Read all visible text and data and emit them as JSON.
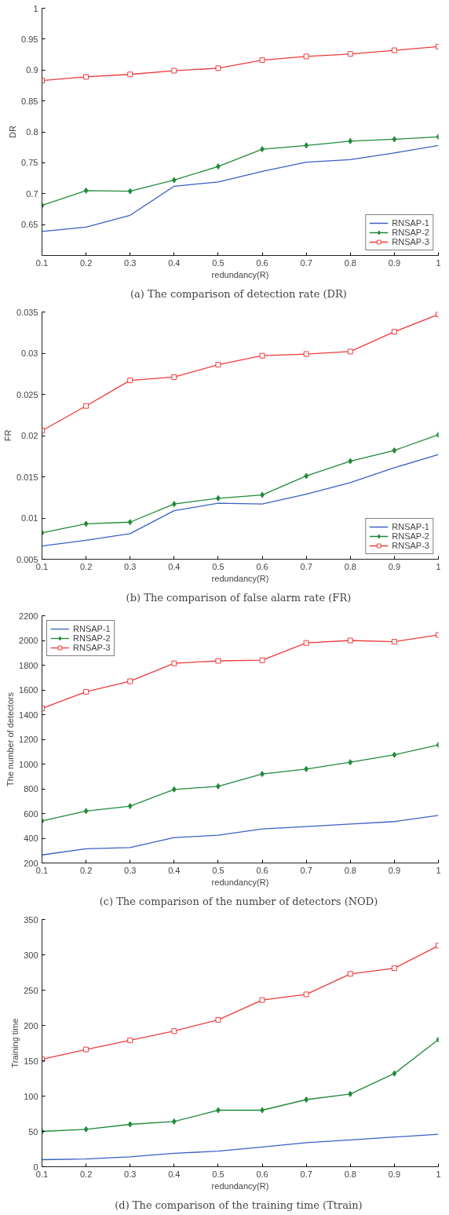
{
  "chart_data": [
    {
      "type": "line",
      "xlabel": "redundancy(R)",
      "ylabel": "DR",
      "annotations": [
        "(a)  The comparison of detection rate (DR)"
      ],
      "x": [
        0.1,
        0.2,
        0.3,
        0.4,
        0.5,
        0.6,
        0.7,
        0.8,
        0.9,
        1
      ],
      "xlim": [
        0.1,
        1
      ],
      "xticks": [
        0.1,
        0.2,
        0.3,
        0.4,
        0.5,
        0.6,
        0.7,
        0.8,
        0.9,
        1
      ],
      "ylim": [
        0.6,
        1
      ],
      "yticks": [
        0.65,
        0.7,
        0.75,
        0.8,
        0.85,
        0.9,
        0.95,
        1
      ],
      "grid": false,
      "legend": "bottom right",
      "series": [
        {
          "name": "RNSAP-1",
          "color": "#3a5fc4",
          "marker": "none",
          "values": [
            0.639,
            0.646,
            0.665,
            0.712,
            0.719,
            0.736,
            0.751,
            0.755,
            0.766,
            0.778
          ]
        },
        {
          "name": "RNSAP-2",
          "color": "#1f8a3a",
          "marker": "diamond",
          "values": [
            0.681,
            0.705,
            0.704,
            0.722,
            0.744,
            0.772,
            0.778,
            0.785,
            0.788,
            0.792
          ]
        },
        {
          "name": "RNSAP-3",
          "color": "#ee3a3a",
          "marker": "square",
          "values": [
            0.883,
            0.889,
            0.893,
            0.899,
            0.903,
            0.916,
            0.922,
            0.926,
            0.932,
            0.938
          ]
        }
      ]
    },
    {
      "type": "line",
      "xlabel": "redundancy(R)",
      "ylabel": "FR",
      "annotations": [
        "(b)  The comparison of false alarm rate (FR)"
      ],
      "x": [
        0.1,
        0.2,
        0.3,
        0.4,
        0.5,
        0.6,
        0.7,
        0.8,
        0.9,
        1
      ],
      "xlim": [
        0.1,
        1
      ],
      "xticks": [
        0.1,
        0.2,
        0.3,
        0.4,
        0.5,
        0.6,
        0.7,
        0.8,
        0.9,
        1
      ],
      "ylim": [
        0.005,
        0.035
      ],
      "yticks": [
        0.005,
        0.01,
        0.015,
        0.02,
        0.025,
        0.03,
        0.035
      ],
      "grid": false,
      "legend": "bottom right",
      "series": [
        {
          "name": "RNSAP-1",
          "color": "#3a5fc4",
          "marker": "none",
          "values": [
            0.0066,
            0.0073,
            0.0081,
            0.0109,
            0.0118,
            0.0117,
            0.0129,
            0.0143,
            0.0161,
            0.0177
          ]
        },
        {
          "name": "RNSAP-2",
          "color": "#1f8a3a",
          "marker": "diamond",
          "values": [
            0.0082,
            0.0093,
            0.0095,
            0.0117,
            0.0124,
            0.0128,
            0.0151,
            0.0169,
            0.0182,
            0.0201
          ]
        },
        {
          "name": "RNSAP-3",
          "color": "#ee3a3a",
          "marker": "square",
          "values": [
            0.0206,
            0.0236,
            0.0267,
            0.0271,
            0.0286,
            0.0297,
            0.0299,
            0.0302,
            0.0326,
            0.0347
          ]
        }
      ]
    },
    {
      "type": "line",
      "xlabel": "redundancy(R)",
      "ylabel": "The number of detectors",
      "annotations": [
        "(c)  The comparison of the number of detectors (NOD)"
      ],
      "x": [
        0.1,
        0.2,
        0.3,
        0.4,
        0.5,
        0.6,
        0.7,
        0.8,
        0.9,
        1
      ],
      "xlim": [
        0.1,
        1
      ],
      "xticks": [
        0.1,
        0.2,
        0.3,
        0.4,
        0.5,
        0.6,
        0.7,
        0.8,
        0.9,
        1
      ],
      "ylim": [
        200,
        2200
      ],
      "yticks": [
        200,
        400,
        600,
        800,
        1000,
        1200,
        1400,
        1600,
        1800,
        2000,
        2200
      ],
      "grid": false,
      "legend": "top left",
      "series": [
        {
          "name": "RNSAP-1",
          "color": "#3a5fc4",
          "marker": "none",
          "values": [
            265,
            315,
            325,
            405,
            425,
            475,
            495,
            515,
            535,
            585
          ]
        },
        {
          "name": "RNSAP-2",
          "color": "#1f8a3a",
          "marker": "diamond",
          "values": [
            540,
            620,
            660,
            795,
            820,
            920,
            960,
            1015,
            1075,
            1155
          ]
        },
        {
          "name": "RNSAP-3",
          "color": "#ee3a3a",
          "marker": "square",
          "values": [
            1450,
            1585,
            1670,
            1815,
            1835,
            1840,
            1980,
            2000,
            1990,
            2045
          ]
        }
      ]
    },
    {
      "type": "line",
      "xlabel": "redundancy(R)",
      "ylabel": "Training time",
      "annotations": [
        "(d)  The comparison of the training time (Ttrain)"
      ],
      "x": [
        0.1,
        0.2,
        0.3,
        0.4,
        0.5,
        0.6,
        0.7,
        0.8,
        0.9,
        1
      ],
      "xlim": [
        0.1,
        1
      ],
      "xticks": [
        0.1,
        0.2,
        0.3,
        0.4,
        0.5,
        0.6,
        0.7,
        0.8,
        0.9,
        1
      ],
      "ylim": [
        0,
        350
      ],
      "yticks": [
        0,
        50,
        100,
        150,
        200,
        250,
        300,
        350
      ],
      "grid": false,
      "legend": false,
      "series": [
        {
          "color": "#3a5fc4",
          "marker": "none",
          "values": [
            10,
            11,
            14,
            19,
            22,
            28,
            34,
            38,
            42,
            46
          ]
        },
        {
          "color": "#1f8a3a",
          "marker": "diamond",
          "values": [
            50,
            53,
            60,
            64,
            80,
            80,
            95,
            103,
            132,
            180
          ]
        },
        {
          "color": "#ee3a3a",
          "marker": "square",
          "values": [
            152,
            166,
            179,
            192,
            208,
            236,
            244,
            273,
            281,
            313
          ]
        }
      ]
    }
  ]
}
